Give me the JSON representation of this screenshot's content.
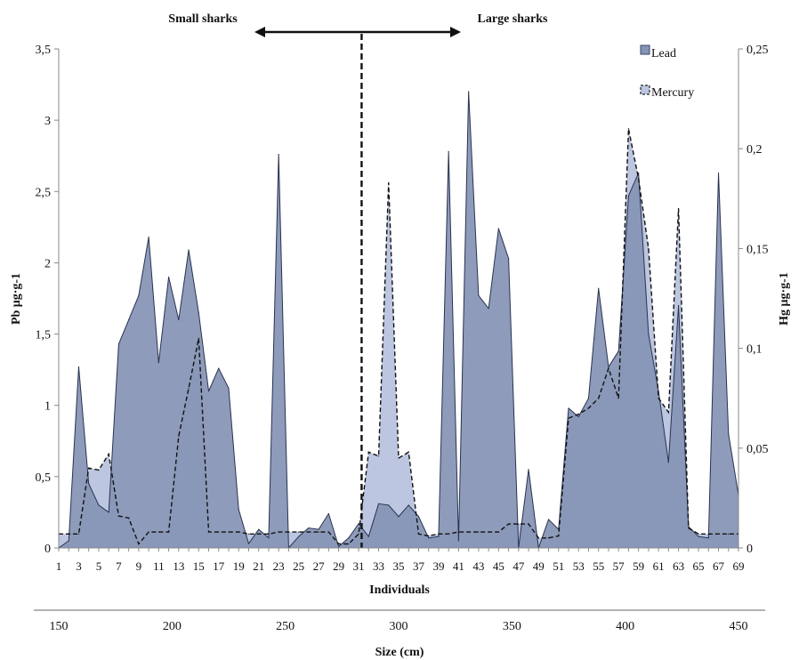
{
  "chart_data": {
    "type": "area",
    "ylabel_left": "Pb μg·g-1",
    "ylabel_right": "Hg  μg·g-1",
    "xlabel": "Individuals",
    "size_axis_label": "Size (cm)",
    "annotations": [
      "Small sharks",
      "Large sharks"
    ],
    "legend": [
      {
        "name": "Lead",
        "color": "#8593b5"
      },
      {
        "name": "Mercury",
        "color": "#bcc6e0"
      }
    ],
    "ylim_left": [
      0,
      3.5
    ],
    "ylim_right": [
      0,
      0.25
    ],
    "yticks_left": [
      "0",
      "0,5",
      "1",
      "1,5",
      "2",
      "2,5",
      "3",
      "3,5"
    ],
    "yticks_right": [
      "0",
      "0,05",
      "0,1",
      "0,15",
      "0,2",
      "0,25"
    ],
    "x_ticks": [
      1,
      3,
      5,
      7,
      9,
      11,
      13,
      15,
      17,
      19,
      21,
      23,
      25,
      27,
      29,
      31,
      33,
      35,
      37,
      39,
      41,
      43,
      45,
      47,
      49,
      51,
      53,
      55,
      57,
      59,
      61,
      63,
      65,
      67,
      69
    ],
    "size_ticks": [
      "150",
      "200",
      "250",
      "300",
      "350",
      "400",
      "450"
    ],
    "divider_individual": 31.3,
    "x": [
      1,
      2,
      3,
      4,
      5,
      6,
      7,
      8,
      9,
      10,
      11,
      12,
      13,
      14,
      15,
      16,
      17,
      18,
      19,
      20,
      21,
      22,
      23,
      24,
      25,
      26,
      27,
      28,
      29,
      30,
      31,
      32,
      33,
      34,
      35,
      36,
      37,
      38,
      39,
      40,
      41,
      42,
      43,
      44,
      45,
      46,
      47,
      48,
      49,
      50,
      51,
      52,
      53,
      54,
      55,
      56,
      57,
      58,
      59,
      60,
      61,
      62,
      63,
      64,
      65,
      66,
      67,
      68,
      69
    ],
    "series": [
      {
        "name": "Lead",
        "axis": "left",
        "values": [
          0,
          0.05,
          1.27,
          0.45,
          0.3,
          0.25,
          1.43,
          1.6,
          1.77,
          2.18,
          1.3,
          1.9,
          1.6,
          2.09,
          1.65,
          1.1,
          1.26,
          1.12,
          0.27,
          0.03,
          0.13,
          0.07,
          2.76,
          0,
          0.08,
          0.14,
          0.13,
          0.24,
          0.01,
          0.07,
          0.17,
          0.08,
          0.31,
          0.3,
          0.22,
          0.3,
          0.22,
          0.07,
          0.08,
          2.78,
          0.05,
          3.2,
          1.77,
          1.68,
          2.24,
          2.03,
          0,
          0.55,
          0,
          0.2,
          0.13,
          0.98,
          0.92,
          1.05,
          1.82,
          1.27,
          1.38,
          2.47,
          2.63,
          1.5,
          1.1,
          0.6,
          1.7,
          0.15,
          0.08,
          0.07,
          2.63,
          0.8,
          0.37
        ]
      },
      {
        "name": "Mercury",
        "axis": "right",
        "values": [
          0.007,
          0.007,
          0.007,
          0.04,
          0.039,
          0.047,
          0.016,
          0.015,
          0.002,
          0.008,
          0.008,
          0.008,
          0.056,
          0.08,
          0.105,
          0.008,
          0.008,
          0.008,
          0.008,
          0.007,
          0.007,
          0.007,
          0.008,
          0.008,
          0.008,
          0.008,
          0.008,
          0.008,
          0.002,
          0.002,
          0.007,
          0.048,
          0.046,
          0.183,
          0.045,
          0.048,
          0.007,
          0.006,
          0.007,
          0.007,
          0.008,
          0.008,
          0.008,
          0.008,
          0.008,
          0.012,
          0.012,
          0.012,
          0.005,
          0.005,
          0.006,
          0.065,
          0.067,
          0.07,
          0.075,
          0.09,
          0.075,
          0.21,
          0.185,
          0.15,
          0.075,
          0.068,
          0.17,
          0.01,
          0.007,
          0.007,
          0.007,
          0.007,
          0.007
        ]
      }
    ]
  }
}
